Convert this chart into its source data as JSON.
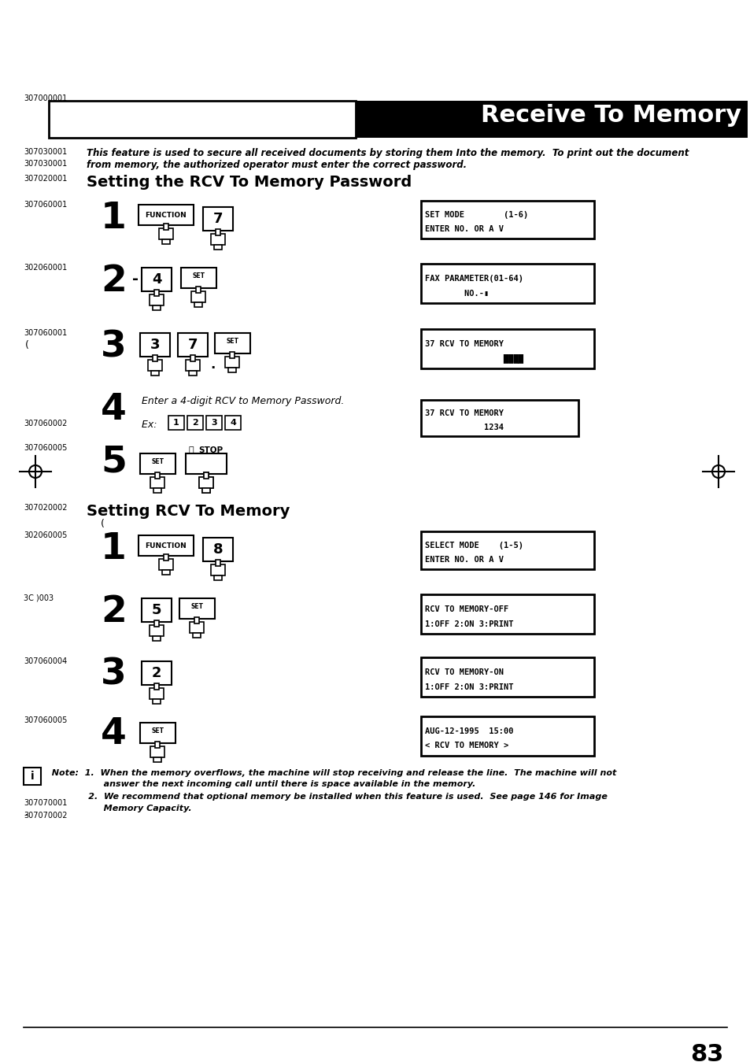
{
  "bg_color": "#ffffff",
  "page_number": "83",
  "header_label": "307000001",
  "header_title": "Receive To Memory",
  "intro_code": "307030001",
  "intro_line1": "This feature is used to secure all received documents by storing them Into the memory.  To print out the document",
  "intro_line2": "from memory, the authorized operator must enter the correct password.",
  "section1_code": "307020001",
  "section1_title": "Setting the RCV To Memory Password",
  "section2_code": "307020002",
  "section2_title": "Setting RCV To Memory",
  "note_code1": "307070001",
  "note_code2": "307070002",
  "note_line1": "  Note:  1.  When the memory overflows, the machine will stop receiving and release the line.  The machine will not",
  "note_line2": "                   answer the next incoming call until there is space available in the memory.",
  "note_line3": "              2.  We recommend that optional memory be installed when this feature is used.  See page 146 for Image",
  "note_line4": "                   Memory Capacity.",
  "disp1_l1": "SET MODE        (1-6)",
  "disp1_l2": "ENTER NO. OR A V",
  "disp2_l1": "FAX PARAMETER(01-64)",
  "disp2_l2": "        NO.-▮",
  "disp3_l1": "37 RCV TO MEMORY",
  "disp3_l2": "                ████",
  "disp4_l1": "37 RCV TO MEMORY",
  "disp4_l2": "            1234",
  "disp5_l1": "SELECT MODE    (1-5)",
  "disp5_l2": "ENTER NO. OR A V",
  "disp6_l1": "RCV TO MEMORY-OFF",
  "disp6_l2": "1:OFF 2:ON 3:PRINT",
  "disp7_l1": "RCV TO MEMORY-ON",
  "disp7_l2": "1:OFF 2:ON 3:PRINT",
  "disp8_l1": "AUG-12-1995  15:00",
  "disp8_l2": "< RCV TO MEMORY >"
}
